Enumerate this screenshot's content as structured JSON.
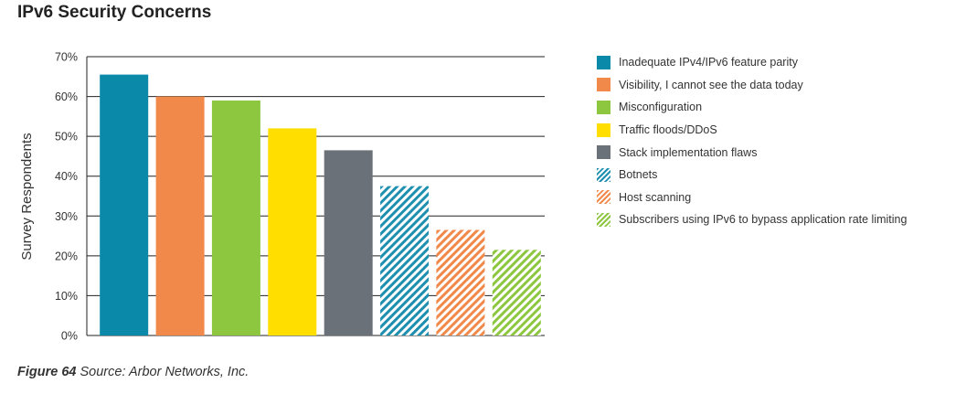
{
  "title": "IPv6 Security Concerns",
  "caption": {
    "figure": "Figure 64",
    "source": "Source: Arbor Networks, Inc."
  },
  "chart_data": {
    "type": "bar",
    "title": "IPv6 Security Concerns",
    "ylabel": "Survey Respondents",
    "xlabel": "",
    "ylim": [
      0,
      70
    ],
    "yticks": [
      "0%",
      "10%",
      "20%",
      "30%",
      "40%",
      "50%",
      "60%",
      "70%"
    ],
    "grid": true,
    "legend_position": "right",
    "categories": [
      "Inadequate IPv4/IPv6 feature parity",
      "Visibility, I cannot see the data today",
      "Misconfiguration",
      "Traffic floods/DDoS",
      "Stack implementation flaws",
      "Botnets",
      "Host scanning",
      "Subscribers using IPv6 to bypass application rate limiting"
    ],
    "values": [
      65.5,
      60,
      59,
      52,
      46.5,
      37.5,
      26.5,
      21.5
    ],
    "colors": [
      "#0a8aa8",
      "#f0894a",
      "#8dc63f",
      "#ffde00",
      "#6b7178",
      "#1f8fb0",
      "#f0894a",
      "#8dc63f"
    ],
    "patterns": [
      "solid",
      "solid",
      "solid",
      "solid",
      "solid",
      "hatched",
      "hatched",
      "hatched"
    ]
  }
}
